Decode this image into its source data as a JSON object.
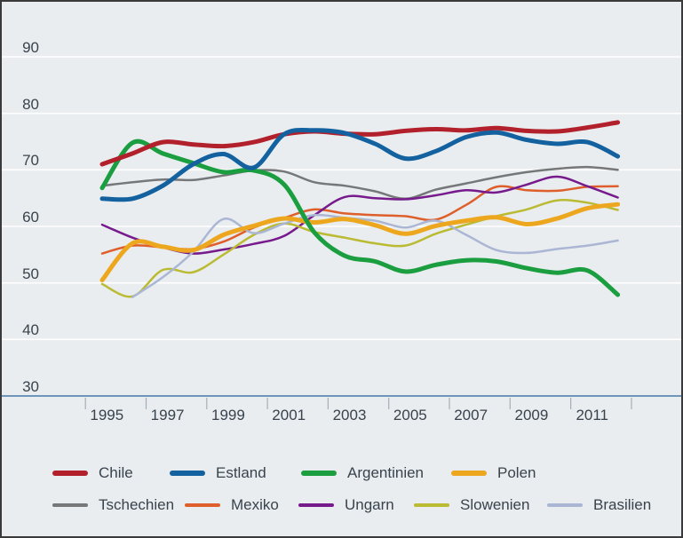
{
  "chart_data": {
    "type": "line",
    "title": "",
    "xlabel": "",
    "ylabel": "",
    "x": [
      1995,
      1996,
      1997,
      1998,
      1999,
      2000,
      2001,
      2002,
      2003,
      2004,
      2005,
      2006,
      2007,
      2008,
      2009,
      2010,
      2011,
      2012
    ],
    "x_tick_labels": [
      "1995",
      "1997",
      "1999",
      "2001",
      "2003",
      "2005",
      "2007",
      "2009",
      "2011"
    ],
    "y_tick_labels": [
      "90",
      "80",
      "70",
      "60",
      "50",
      "40",
      "30"
    ],
    "y_gridline_values": [
      90,
      80,
      70,
      60,
      50,
      40
    ],
    "baseline_value": 30,
    "ylim": [
      30,
      95
    ],
    "grid": "horizontal white gridlines on light gray-blue panel",
    "legend_position": "bottom, two rows",
    "series": [
      {
        "name": "Chile",
        "color": "#b2212b",
        "thickness": "thick",
        "values": [
          71.0,
          72.9,
          74.9,
          74.5,
          74.2,
          74.9,
          76.3,
          76.8,
          76.4,
          76.3,
          76.9,
          77.2,
          77.0,
          77.4,
          76.9,
          76.8,
          77.5,
          78.4
        ]
      },
      {
        "name": "Estland",
        "color": "#13619f",
        "thickness": "thick",
        "values": [
          64.9,
          64.9,
          67.2,
          71.0,
          72.8,
          70.4,
          76.3,
          77.0,
          76.5,
          74.6,
          72.0,
          73.3,
          75.8,
          76.6,
          75.3,
          74.6,
          74.9,
          72.4
        ]
      },
      {
        "name": "Argentinien",
        "color": "#1a9e40",
        "thickness": "thick",
        "values": [
          66.8,
          74.8,
          72.9,
          71.2,
          69.6,
          69.9,
          67.4,
          58.9,
          54.8,
          53.8,
          52.0,
          53.2,
          54.0,
          53.8,
          52.6,
          51.8,
          52.2,
          47.9
        ]
      },
      {
        "name": "Polen",
        "color": "#eda71f",
        "thickness": "thick",
        "values": [
          50.5,
          57.0,
          56.4,
          55.8,
          58.5,
          60.1,
          61.4,
          60.7,
          61.3,
          60.2,
          58.7,
          60.1,
          61.0,
          61.6,
          60.4,
          61.4,
          63.2,
          63.9
        ]
      },
      {
        "name": "Tschechien",
        "color": "#757778",
        "thickness": "thin",
        "values": [
          67.2,
          67.8,
          68.3,
          68.2,
          69.0,
          69.9,
          69.7,
          67.8,
          67.2,
          66.2,
          64.9,
          66.5,
          67.6,
          68.7,
          69.6,
          70.2,
          70.5,
          70.0
        ]
      },
      {
        "name": "Mexiko",
        "color": "#de5f2b",
        "thickness": "thin",
        "values": [
          55.2,
          56.6,
          56.3,
          56.0,
          57.3,
          59.8,
          61.5,
          63.0,
          62.3,
          62.0,
          61.8,
          61.2,
          63.8,
          67.0,
          66.4,
          66.3,
          67.0,
          67.1
        ]
      },
      {
        "name": "Ungarn",
        "color": "#761a8c",
        "thickness": "thin",
        "values": [
          60.3,
          58.0,
          56.3,
          55.2,
          55.9,
          56.9,
          58.3,
          62.0,
          65.2,
          65.0,
          64.8,
          65.5,
          66.4,
          66.0,
          67.4,
          68.8,
          67.1,
          65.1
        ]
      },
      {
        "name": "Slowenien",
        "color": "#babb33",
        "thickness": "thin",
        "values": [
          49.8,
          47.6,
          52.3,
          51.9,
          55.0,
          58.5,
          60.5,
          59.0,
          58.0,
          57.0,
          56.6,
          58.7,
          60.3,
          61.8,
          63.0,
          64.6,
          64.2,
          62.9
        ]
      },
      {
        "name": "Brasilien",
        "color": "#aab6d3",
        "thickness": "thin",
        "values": [
          null,
          47.5,
          51.0,
          55.5,
          61.3,
          58.8,
          60.5,
          62.0,
          61.5,
          61.0,
          59.8,
          61.0,
          58.5,
          55.8,
          55.3,
          56.0,
          56.6,
          57.5
        ]
      }
    ]
  },
  "legend": {
    "row1": [
      "Chile",
      "Estland",
      "Argentinien",
      "Polen"
    ],
    "row2": [
      "Tschechien",
      "Mexiko",
      "Ungarn",
      "Slowenien",
      "Brasilien"
    ]
  },
  "colors": {
    "background": "#e9edf0",
    "gridline": "#ffffff",
    "baseline_axis": "#4479a8",
    "tick": "#a9aeb4",
    "text": "#39434d",
    "border": "#3a3a3a"
  }
}
